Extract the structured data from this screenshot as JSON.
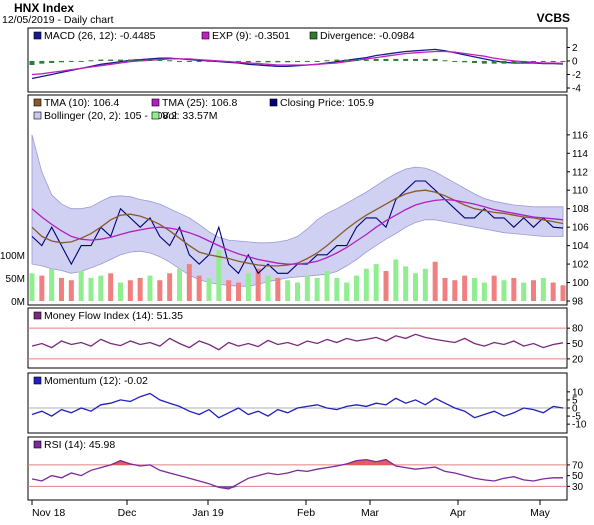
{
  "header": {
    "title": "HNX Index",
    "subtitle": "12/05/2019 - Daily chart",
    "brand": "VCBS"
  },
  "colors": {
    "panel_bg": "#ffffff",
    "band_fill": "#c8c8f0",
    "band_inner": "#fcfce4",
    "macd": "#1a1a8c",
    "exp": "#c020c0",
    "divergence": "#2e7d32",
    "tma10": "#8b5a2b",
    "tma25": "#b020c0",
    "close": "#00007a",
    "vol_up": "#90ee90",
    "vol_down": "#f08080",
    "mfi": "#7a2a7a",
    "momentum": "#2020c0",
    "rsi": "#7a2a9a",
    "rsi_zone": "#e04040",
    "rsi_low_zone": "#3030c0",
    "level_line": "#e08080"
  },
  "chart_data": [
    {
      "type": "line",
      "panel": "MACD",
      "legend": [
        {
          "label": "MACD (26, 12): -0.4485",
          "swatch": "macd"
        },
        {
          "label": "EXP (9): -0.3501",
          "swatch": "exp"
        },
        {
          "label": "Divergence: -0.0984",
          "swatch": "divergence"
        }
      ],
      "y_ticks": [
        "2",
        "0",
        "-2",
        "-4"
      ],
      "ylim": [
        -4,
        2.8
      ],
      "series": [
        {
          "key": "macd",
          "values": [
            -2.6,
            -2.3,
            -2.0,
            -1.7,
            -1.4,
            -1.1,
            -0.8,
            -0.5,
            -0.3,
            -0.1,
            0.1,
            0.2,
            0.3,
            0.4,
            0.4,
            0.3,
            0.2,
            0.1,
            0.0,
            -0.1,
            -0.2,
            -0.3,
            -0.5,
            -0.6,
            -0.7,
            -0.8,
            -0.8,
            -0.7,
            -0.6,
            -0.5,
            -0.3,
            -0.1,
            0.1,
            0.3,
            0.5,
            0.8,
            1.0,
            1.2,
            1.4,
            1.5,
            1.6,
            1.7,
            1.5,
            1.2,
            0.9,
            0.6,
            0.3,
            0.0,
            -0.2,
            -0.3,
            -0.3,
            -0.3,
            -0.4,
            -0.4,
            -0.45
          ]
        },
        {
          "key": "exp",
          "values": [
            -2.0,
            -1.9,
            -1.7,
            -1.5,
            -1.3,
            -1.1,
            -0.9,
            -0.7,
            -0.5,
            -0.3,
            -0.1,
            0.0,
            0.1,
            0.2,
            0.3,
            0.3,
            0.3,
            0.2,
            0.1,
            0.0,
            -0.1,
            -0.2,
            -0.3,
            -0.4,
            -0.5,
            -0.6,
            -0.6,
            -0.6,
            -0.6,
            -0.5,
            -0.4,
            -0.3,
            -0.1,
            0.1,
            0.3,
            0.5,
            0.7,
            0.9,
            1.1,
            1.2,
            1.3,
            1.4,
            1.4,
            1.3,
            1.1,
            0.9,
            0.7,
            0.4,
            0.2,
            0.0,
            -0.1,
            -0.2,
            -0.3,
            -0.3,
            -0.35
          ]
        },
        {
          "key": "divergence",
          "style": "bars",
          "values": [
            -0.6,
            -0.4,
            -0.3,
            -0.2,
            -0.1,
            0.0,
            0.1,
            0.2,
            0.2,
            0.2,
            0.2,
            0.2,
            0.2,
            0.2,
            0.1,
            0.0,
            -0.1,
            -0.1,
            -0.1,
            -0.1,
            -0.1,
            -0.1,
            -0.2,
            -0.2,
            -0.2,
            -0.2,
            -0.2,
            -0.1,
            0.0,
            0.0,
            0.1,
            0.2,
            0.2,
            0.2,
            0.2,
            0.3,
            0.3,
            0.3,
            0.3,
            0.3,
            0.3,
            0.3,
            0.1,
            -0.1,
            -0.2,
            -0.3,
            -0.4,
            -0.4,
            -0.4,
            -0.3,
            -0.2,
            -0.1,
            -0.1,
            -0.1,
            -0.1
          ]
        }
      ]
    },
    {
      "type": "line",
      "panel": "Price",
      "legend": [
        {
          "label": "TMA (10): 106.4",
          "swatch": "tma10"
        },
        {
          "label": "TMA (25): 106.8",
          "swatch": "tma25"
        },
        {
          "label": "Closing Price: 105.9",
          "swatch": "close"
        },
        {
          "label": "Bollinger (20, 2): 105 - 108.2",
          "swatch": "band_fill"
        },
        {
          "label": "Vol: 33.57M",
          "swatch": "vol_up"
        }
      ],
      "y_ticks": [
        "116",
        "114",
        "112",
        "110",
        "108",
        "106",
        "104",
        "102",
        "100",
        "98"
      ],
      "vol_ticks": [
        "100M",
        "50M",
        "0M"
      ],
      "ylim": [
        98,
        117.5
      ],
      "series": [
        {
          "key": "close",
          "values": [
            105,
            104,
            106,
            104,
            102,
            104,
            104,
            106,
            105,
            108,
            107,
            106,
            107,
            105,
            104,
            106,
            103,
            102,
            103,
            106,
            102,
            101,
            103,
            101,
            102,
            101,
            101,
            102,
            102,
            103,
            103,
            104,
            104,
            106,
            107,
            107,
            106,
            109,
            110,
            111,
            111,
            110,
            109,
            108,
            107,
            107,
            108,
            107,
            107,
            106,
            107,
            106,
            107,
            106,
            105.9
          ]
        },
        {
          "key": "tma10",
          "values": [
            106,
            105,
            104.5,
            104.3,
            104.4,
            104.8,
            105.3,
            106,
            106.8,
            107.3,
            107.4,
            107.2,
            106.8,
            106.3,
            105.6,
            104.8,
            104,
            103.3,
            103,
            102.8,
            102.6,
            102.3,
            102.1,
            101.9,
            101.8,
            101.8,
            101.9,
            102.1,
            102.6,
            103.2,
            104,
            104.9,
            105.8,
            106.6,
            107.3,
            107.9,
            108.5,
            109.1,
            109.6,
            109.9,
            110,
            109.8,
            109.4,
            108.9,
            108.4,
            108,
            107.8,
            107.6,
            107.5,
            107.3,
            107.1,
            107,
            106.8,
            106.6,
            106.4
          ]
        },
        {
          "key": "tma25",
          "values": [
            108,
            107.1,
            106.3,
            105.6,
            105,
            104.7,
            104.6,
            104.7,
            104.9,
            105.2,
            105.5,
            105.7,
            105.9,
            106,
            105.9,
            105.7,
            105.4,
            105,
            104.5,
            104,
            103.5,
            103.1,
            102.8,
            102.5,
            102.3,
            102.1,
            102,
            102,
            102.1,
            102.3,
            102.7,
            103.2,
            103.8,
            104.5,
            105.2,
            106,
            106.7,
            107.3,
            107.9,
            108.4,
            108.7,
            108.9,
            109,
            108.9,
            108.7,
            108.5,
            108.2,
            107.9,
            107.7,
            107.5,
            107.3,
            107.1,
            107,
            106.9,
            106.8
          ]
        },
        {
          "key": "boll_upper",
          "values": [
            116,
            112,
            109.5,
            108.5,
            108,
            108,
            108.2,
            108.8,
            109.3,
            109.4,
            109.3,
            109,
            108.8,
            108.5,
            108,
            107.5,
            107,
            106.3,
            105.5,
            104.9,
            104.6,
            104.5,
            104.4,
            104.3,
            104.3,
            104.4,
            104.6,
            105,
            105.8,
            106.8,
            107.5,
            108,
            108.6,
            109.2,
            109.8,
            110.5,
            111.2,
            111.8,
            112.3,
            112.5,
            112.4,
            112,
            111.4,
            110.8,
            110.2,
            109.6,
            109.1,
            108.8,
            108.6,
            108.4,
            108.3,
            108.2,
            108.2,
            108.2,
            108.2
          ]
        },
        {
          "key": "boll_lower",
          "values": [
            102,
            101.8,
            101.5,
            101.3,
            101,
            101.2,
            101.6,
            102,
            102.5,
            103,
            103.3,
            103.4,
            103.2,
            102.8,
            102.2,
            101.5,
            100.8,
            100.3,
            100,
            99.8,
            99.7,
            99.6,
            99.6,
            99.8,
            100.1,
            100.3,
            100.5,
            100.6,
            100.7,
            100.8,
            100.9,
            101.2,
            101.8,
            102.5,
            103.3,
            104,
            104.7,
            105.3,
            106,
            106.5,
            106.8,
            106.8,
            106.6,
            106.4,
            106.2,
            106,
            105.8,
            105.6,
            105.4,
            105.3,
            105.2,
            105.1,
            105,
            105,
            105
          ]
        },
        {
          "key": "volume",
          "style": "bars",
          "values": [
            60,
            55,
            70,
            50,
            45,
            65,
            50,
            55,
            60,
            40,
            45,
            50,
            55,
            45,
            60,
            70,
            80,
            55,
            50,
            110,
            45,
            40,
            60,
            70,
            55,
            50,
            45,
            40,
            55,
            50,
            65,
            50,
            40,
            55,
            70,
            80,
            65,
            90,
            75,
            60,
            70,
            85,
            50,
            45,
            55,
            50,
            40,
            55,
            45,
            50,
            40,
            45,
            50,
            40,
            34
          ]
        }
      ]
    },
    {
      "type": "line",
      "panel": "Money Flow Index",
      "legend": [
        {
          "label": "Money Flow Index (14): 51.35",
          "swatch": "mfi"
        }
      ],
      "y_ticks": [
        "80",
        "50",
        "20"
      ],
      "ylim": [
        10,
        92
      ],
      "series": [
        {
          "key": "mfi",
          "values": [
            45,
            50,
            42,
            55,
            48,
            52,
            45,
            58,
            50,
            46,
            55,
            48,
            52,
            45,
            60,
            50,
            42,
            55,
            48,
            38,
            52,
            45,
            50,
            44,
            56,
            48,
            52,
            46,
            55,
            50,
            58,
            52,
            60,
            55,
            58,
            62,
            55,
            65,
            60,
            68,
            62,
            58,
            55,
            52,
            60,
            50,
            45,
            52,
            48,
            55,
            45,
            50,
            42,
            48,
            51.35
          ]
        }
      ]
    },
    {
      "type": "line",
      "panel": "Momentum",
      "legend": [
        {
          "label": "Momentum (12): -0.02",
          "swatch": "momentum"
        }
      ],
      "y_ticks": [
        "10",
        "5",
        "0",
        "-5",
        "-10"
      ],
      "ylim": [
        -13,
        13
      ],
      "series": [
        {
          "key": "momentum",
          "values": [
            -4,
            -2,
            -5,
            -1,
            -3,
            0,
            -2,
            2,
            3,
            5,
            4,
            7,
            9,
            5,
            3,
            1,
            -2,
            -4,
            -1,
            -6,
            -3,
            0,
            -4,
            -2,
            -5,
            -1,
            -3,
            0,
            1,
            2,
            0,
            -1,
            1,
            2,
            1,
            3,
            2,
            6,
            3,
            5,
            2,
            6,
            3,
            0,
            -2,
            -6,
            -4,
            -2,
            -5,
            -3,
            0,
            -1,
            -3,
            1,
            -0.02
          ]
        }
      ]
    },
    {
      "type": "line",
      "panel": "RSI",
      "legend": [
        {
          "label": "RSI (14): 45.98",
          "swatch": "rsi"
        }
      ],
      "y_ticks": [
        "70",
        "50",
        "30"
      ],
      "ylim": [
        12,
        96
      ],
      "series": [
        {
          "key": "rsi",
          "values": [
            44,
            40,
            50,
            46,
            55,
            50,
            60,
            65,
            70,
            78,
            72,
            68,
            70,
            60,
            55,
            50,
            45,
            40,
            35,
            28,
            25,
            35,
            45,
            50,
            55,
            52,
            55,
            60,
            58,
            62,
            65,
            68,
            72,
            78,
            80,
            76,
            80,
            68,
            65,
            62,
            64,
            66,
            58,
            55,
            50,
            45,
            42,
            40,
            45,
            48,
            42,
            40,
            44,
            46,
            45.98
          ]
        }
      ]
    }
  ],
  "x_labels": [
    "Nov 18",
    "Dec",
    "Jan 19",
    "Feb",
    "Mar",
    "Apr",
    "May"
  ]
}
